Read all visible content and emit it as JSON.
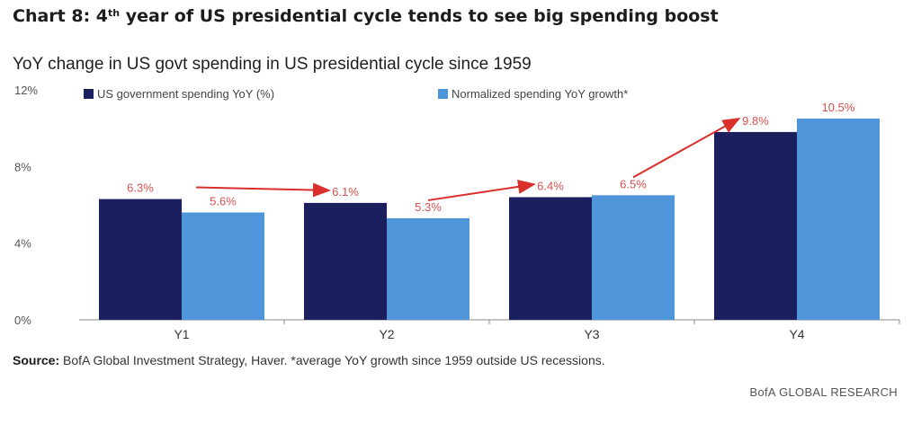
{
  "title": {
    "prefix": "Chart 8: 4",
    "sup": "th",
    "rest": " year of US presidential cycle tends to see big spending boost"
  },
  "subtitle": "YoY change in US govt spending in US presidential cycle since 1959",
  "source": {
    "label": "Source:",
    "text": " BofA Global Investment Strategy, Haver. *average YoY growth since 1959 outside US recessions."
  },
  "brand": "BofA GLOBAL RESEARCH",
  "colors": {
    "series1": "#1b1f5e",
    "series2": "#4e95d9",
    "data_label": "#d6524e",
    "arrow": "#d9302b",
    "axis": "#888888"
  },
  "chart_data": {
    "type": "bar",
    "categories": [
      "Y1",
      "Y2",
      "Y3",
      "Y4"
    ],
    "series": [
      {
        "name": "US government spending YoY (%)",
        "values": [
          6.3,
          6.1,
          6.4,
          9.8
        ],
        "labels": [
          "6.3%",
          "6.1%",
          "6.4%",
          "9.8%"
        ]
      },
      {
        "name": "Normalized spending YoY growth*",
        "values": [
          5.6,
          5.3,
          6.5,
          10.5
        ],
        "labels": [
          "5.6%",
          "5.3%",
          "6.5%",
          "10.5%"
        ]
      }
    ],
    "ylim": [
      0,
      12
    ],
    "yticks": [
      0,
      4,
      8,
      12
    ],
    "ytick_labels": [
      "0%",
      "4%",
      "8%",
      "12%"
    ],
    "legend": "top-left",
    "grid": false,
    "annotations": "red arrows between successive category groups showing upward trend"
  }
}
